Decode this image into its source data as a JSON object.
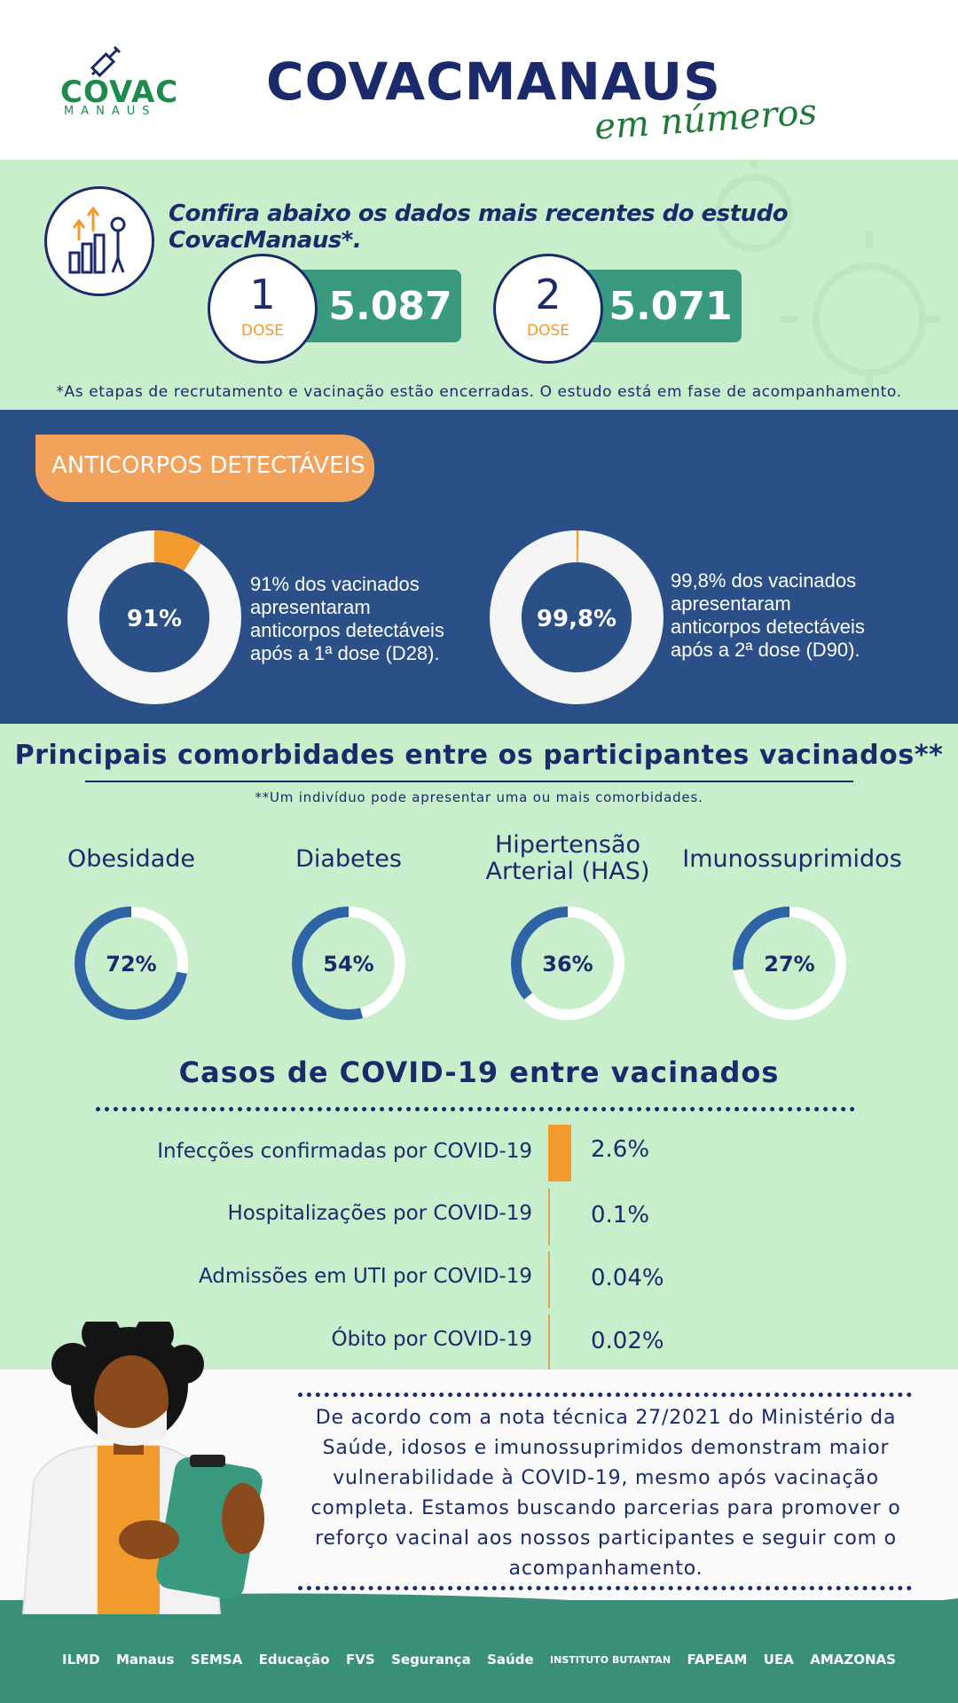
{
  "header": {
    "logo_word": "COVAC",
    "logo_sub": "MANAUS",
    "title": "COVACMANAUS",
    "subtitle": "em números"
  },
  "study": {
    "intro": "Confira abaixo os dados mais recentes do estudo CovacManaus*.",
    "doses": [
      {
        "number": "1",
        "label": "DOSE",
        "value": "5.087"
      },
      {
        "number": "2",
        "label": "DOSE",
        "value": "5.071"
      }
    ],
    "note": "*As etapas de recrutamento e vacinação estão encerradas. O estudo está em fase de acompanhamento."
  },
  "antibodies": {
    "tag": "ANTICORPOS DETECTÁVEIS",
    "items": [
      {
        "value": 0.91,
        "label": "91%",
        "desc": [
          "91% dos vacinados",
          "apresentaram",
          "anticorpos detectáveis",
          "após a 1ª dose (D28)."
        ]
      },
      {
        "value": 0.998,
        "label": "99,8%",
        "desc": [
          "99,8% dos vacinados",
          "apresentaram",
          "anticorpos detectáveis",
          "após a 2ª dose (D90)."
        ]
      }
    ]
  },
  "comorbidities": {
    "title": "Principais comorbidades entre os participantes vacinados**",
    "note": "**Um indivíduo pode apresentar uma ou mais comorbidades.",
    "items": [
      {
        "name": "Obesidade",
        "value": 0.72,
        "label": "72%"
      },
      {
        "name": "Diabetes",
        "value": 0.54,
        "label": "54%"
      },
      {
        "name": "Hipertensão Arterial (HAS)",
        "value": 0.36,
        "label": "36%"
      },
      {
        "name": "Imunossuprimidos",
        "value": 0.27,
        "label": "27%"
      }
    ]
  },
  "cases": {
    "title": "Casos de COVID-19 entre vacinados",
    "items": [
      {
        "label": "Infecções confirmadas por COVID-19",
        "value": 2.6,
        "display": "2.6%"
      },
      {
        "label": "Hospitalizações por COVID-19",
        "value": 0.1,
        "display": "0.1%"
      },
      {
        "label": "Admissões em UTI por COVID-19",
        "value": 0.04,
        "display": "0.04%"
      },
      {
        "label": "Óbito por COVID-19",
        "value": 0.02,
        "display": "0.02%"
      }
    ]
  },
  "message": "De acordo com a nota técnica 27/2021 do Ministério da Saúde, idosos e imunossuprimidos demonstram maior vulnerabilidade à COVID-19, mesmo após vacinação completa. Estamos buscando parcerias para promover o reforço vacinal aos nossos participantes e seguir com o acompanhamento.",
  "partners": [
    "ILMD",
    "Manaus",
    "SEMSA",
    "Educação",
    "FVS",
    "Segurança",
    "Saúde",
    "INSTITUTO BUTANTAN",
    "FAPEAM",
    "UEA",
    "AMAZONAS"
  ],
  "colors": {
    "navy": "#1b2a6b",
    "green_bg": "#c9eecb",
    "blue_bg": "#2b4f87",
    "teal": "#3a9a80",
    "orange": "#f29a2e",
    "ring_blue": "#2e63a6"
  },
  "icons": [
    "syringe-icon",
    "growth-chart-icon",
    "virus-icon",
    "doctor-illustration"
  ]
}
